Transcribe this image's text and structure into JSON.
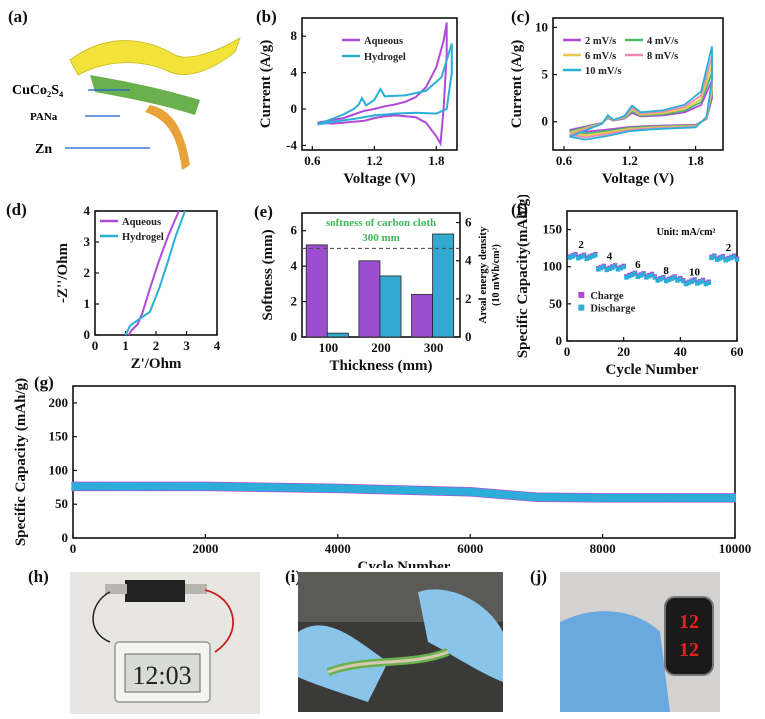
{
  "panel_labels": [
    "(a)",
    "(b)",
    "(c)",
    "(d)",
    "(e)",
    "(f)",
    "(g)",
    "(h)",
    "(i)",
    "(j)"
  ],
  "schematic": {
    "layers": [
      "CuCo₂S₄",
      "PANa",
      "Zn"
    ],
    "colors": {
      "top": "#f2e23a",
      "middle": "#6ab04c",
      "bottom": "#e8a23a"
    }
  },
  "photos": {
    "h": {
      "display_text": "12:03",
      "icon": "lcd-clock-icon"
    },
    "i": {
      "icon": "gloved-hands-bending-battery-icon"
    },
    "j": {
      "display_text": "12",
      "icon": "led-watch-icon"
    }
  },
  "chart_data": [
    {
      "id": "b",
      "type": "line",
      "xlabel": "Voltage (V)",
      "ylabel": "Current (A/g)",
      "xlim": [
        0.5,
        2.0
      ],
      "ylim": [
        -4.5,
        10
      ],
      "xticks": [
        0.6,
        1.2,
        1.8
      ],
      "yticks": [
        -4,
        0,
        4,
        8
      ],
      "legend_position": "top-center",
      "series": [
        {
          "name": "Aqueous",
          "color": "#b04ad8",
          "upper": [
            [
              0.65,
              -1.5
            ],
            [
              0.9,
              -1.0
            ],
            [
              1.0,
              -0.6
            ],
            [
              1.1,
              -0.2
            ],
            [
              1.2,
              0.0
            ],
            [
              1.3,
              0.3
            ],
            [
              1.4,
              0.5
            ],
            [
              1.5,
              0.8
            ],
            [
              1.6,
              1.3
            ],
            [
              1.7,
              2.4
            ],
            [
              1.8,
              4.6
            ],
            [
              1.87,
              7.5
            ],
            [
              1.9,
              9.5
            ]
          ],
          "lower": [
            [
              1.9,
              6.0
            ],
            [
              1.87,
              0.0
            ],
            [
              1.84,
              -3.8
            ],
            [
              1.8,
              -3.0
            ],
            [
              1.7,
              -1.5
            ],
            [
              1.6,
              -0.9
            ],
            [
              1.5,
              -0.8
            ],
            [
              1.4,
              -0.7
            ],
            [
              1.3,
              -0.8
            ],
            [
              1.2,
              -1.0
            ],
            [
              1.1,
              -1.3
            ],
            [
              1.0,
              -1.4
            ],
            [
              0.8,
              -1.6
            ],
            [
              0.65,
              -1.5
            ]
          ]
        },
        {
          "name": "Hydrogel",
          "color": "#2ab0d8",
          "upper": [
            [
              0.65,
              -1.7
            ],
            [
              0.9,
              -0.6
            ],
            [
              1.0,
              0.0
            ],
            [
              1.05,
              0.5
            ],
            [
              1.08,
              1.2
            ],
            [
              1.12,
              0.4
            ],
            [
              1.2,
              1.0
            ],
            [
              1.26,
              2.2
            ],
            [
              1.3,
              1.4
            ],
            [
              1.5,
              1.5
            ],
            [
              1.7,
              2.0
            ],
            [
              1.85,
              3.5
            ],
            [
              1.95,
              7.2
            ]
          ],
          "lower": [
            [
              1.95,
              4.0
            ],
            [
              1.9,
              0.0
            ],
            [
              1.8,
              -0.5
            ],
            [
              1.6,
              -0.4
            ],
            [
              1.4,
              -0.5
            ],
            [
              1.2,
              -0.7
            ],
            [
              1.0,
              -1.1
            ],
            [
              0.8,
              -1.4
            ],
            [
              0.65,
              -1.7
            ]
          ]
        }
      ]
    },
    {
      "id": "c",
      "type": "line",
      "xlabel": "Voltage (V)",
      "ylabel": "Current (A/g)",
      "xlim": [
        0.5,
        2.05
      ],
      "ylim": [
        -3,
        11
      ],
      "xticks": [
        0.6,
        1.2,
        1.8
      ],
      "yticks": [
        0,
        5,
        10
      ],
      "legend_position": "top-left",
      "series": [
        {
          "name": "2 mV/s",
          "color": "#b04ad8",
          "scale": 0.55
        },
        {
          "name": "4 mV/s",
          "color": "#4ab86a",
          "scale": 0.65
        },
        {
          "name": "6 mV/s",
          "color": "#e8c84a",
          "scale": 0.75
        },
        {
          "name": "8 mV/s",
          "color": "#e88ab0",
          "scale": 0.87
        },
        {
          "name": "10 mV/s",
          "color": "#2ab0d8",
          "scale": 1.0
        }
      ]
    },
    {
      "id": "d",
      "type": "line",
      "xlabel": "Z'/Ohm",
      "ylabel": "-Z''/Ohm",
      "xlim": [
        0,
        4
      ],
      "ylim": [
        0,
        4
      ],
      "xticks": [
        0,
        1,
        2,
        3,
        4
      ],
      "yticks": [
        0,
        1,
        2,
        3,
        4
      ],
      "legend_position": "top-right",
      "series": [
        {
          "name": "Aqueous",
          "color": "#b04ad8",
          "points": [
            [
              1.1,
              0.0
            ],
            [
              1.2,
              0.15
            ],
            [
              1.4,
              0.35
            ],
            [
              1.55,
              0.7
            ],
            [
              1.8,
              1.5
            ],
            [
              2.1,
              2.4
            ],
            [
              2.4,
              3.2
            ],
            [
              2.75,
              4.0
            ]
          ]
        },
        {
          "name": "Hydrogel",
          "color": "#2ab0d8",
          "points": [
            [
              1.0,
              0.0
            ],
            [
              1.15,
              0.3
            ],
            [
              1.5,
              0.55
            ],
            [
              1.8,
              0.75
            ],
            [
              2.1,
              1.5
            ],
            [
              2.4,
              2.4
            ],
            [
              2.65,
              3.2
            ],
            [
              2.95,
              4.0
            ]
          ]
        }
      ]
    },
    {
      "id": "e",
      "type": "bar",
      "xlabel": "Thickness (mm)",
      "ylabel": "Softness (mm)",
      "y2label": "Areal energy density",
      "y2label_sub": "(10 mWh/cm²)",
      "categories": [
        "100",
        "200",
        "300"
      ],
      "ylim": [
        0,
        7
      ],
      "yticks": [
        0,
        2,
        4,
        6
      ],
      "y2lim": [
        0,
        6.5
      ],
      "y2ticks": [
        0,
        2,
        4,
        6
      ],
      "annotation": "softness of carbon cloth",
      "annotation2": "300 mm",
      "reference_line": 5.0,
      "series": [
        {
          "name": "Softness",
          "color": "#9b4fd0",
          "values": [
            5.2,
            4.3,
            2.4
          ]
        },
        {
          "name": "Areal energy density",
          "color": "#33a8d0",
          "values": [
            0.2,
            3.2,
            5.4
          ]
        }
      ]
    },
    {
      "id": "f",
      "type": "scatter",
      "xlabel": "Cycle Number",
      "ylabel": "Specific Capacity(mAh/g)",
      "xlim": [
        0,
        60
      ],
      "ylim": [
        0,
        175
      ],
      "xticks": [
        0,
        20,
        40,
        60
      ],
      "yticks": [
        0,
        50,
        100,
        150
      ],
      "unit_note": "Unit: mA/cm²",
      "rate_labels": [
        {
          "text": "2",
          "x": 5,
          "y": 125
        },
        {
          "text": "4",
          "x": 15,
          "y": 110
        },
        {
          "text": "6",
          "x": 25,
          "y": 98
        },
        {
          "text": "8",
          "x": 35,
          "y": 90
        },
        {
          "text": "10",
          "x": 45,
          "y": 88
        },
        {
          "text": "2",
          "x": 57,
          "y": 121
        }
      ],
      "segments": [
        {
          "from": 1,
          "to": 10,
          "capacity": 113
        },
        {
          "from": 11,
          "to": 20,
          "capacity": 98
        },
        {
          "from": 21,
          "to": 30,
          "capacity": 88
        },
        {
          "from": 31,
          "to": 40,
          "capacity": 83
        },
        {
          "from": 41,
          "to": 50,
          "capacity": 79
        },
        {
          "from": 51,
          "to": 60,
          "capacity": 111
        }
      ],
      "series": [
        {
          "name": "Charge",
          "color": "#b04ad8"
        },
        {
          "name": "Discharge",
          "color": "#2ab0d8"
        }
      ]
    },
    {
      "id": "g",
      "type": "scatter",
      "xlabel": "Cycle Number",
      "ylabel": "Specific Capacity (mAh/g)",
      "xlim": [
        0,
        10000
      ],
      "ylim": [
        0,
        225
      ],
      "xticks": [
        0,
        2000,
        4000,
        6000,
        8000,
        10000
      ],
      "yticks": [
        0,
        50,
        100,
        150,
        200
      ],
      "trend": [
        [
          0,
          80
        ],
        [
          2000,
          80
        ],
        [
          4000,
          77
        ],
        [
          6000,
          72
        ],
        [
          7000,
          64
        ],
        [
          8000,
          63
        ],
        [
          10000,
          63
        ]
      ],
      "series": [
        {
          "name": "Charge",
          "color": "#b04ad8"
        },
        {
          "name": "Discharge",
          "color": "#2ab0d8"
        }
      ]
    }
  ]
}
